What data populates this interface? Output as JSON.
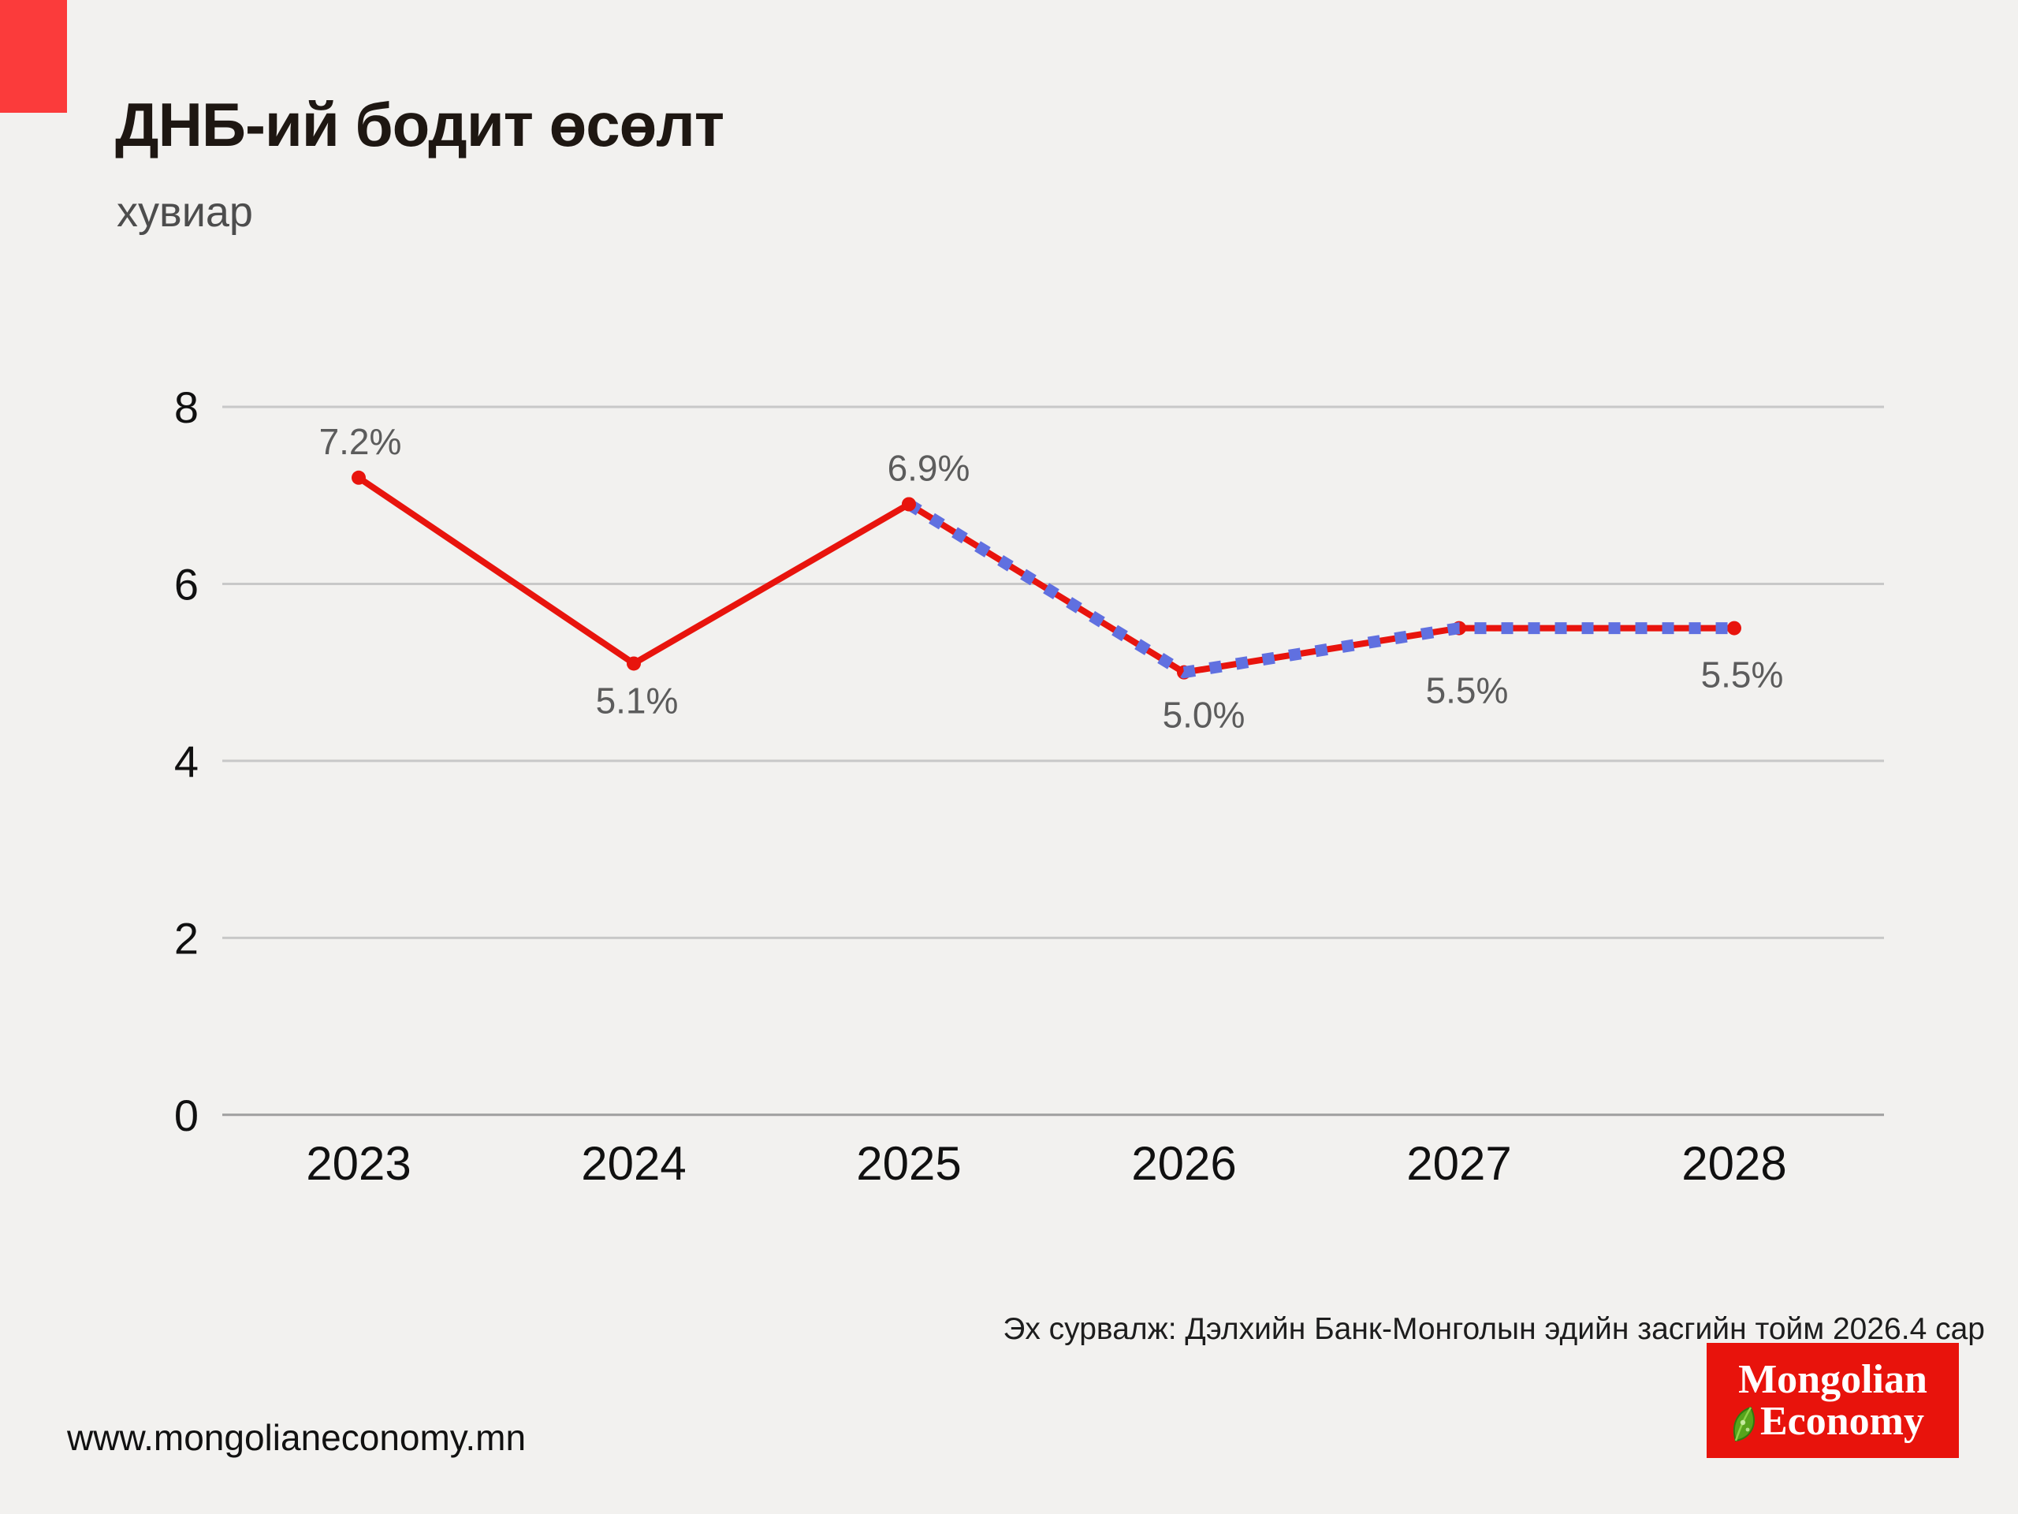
{
  "page": {
    "background": "#f2f1ef",
    "accent_color": "#fb3b3b"
  },
  "header": {
    "title": "ДНБ-ий бодит өсөлт",
    "subtitle": "хувиар"
  },
  "chart_data": {
    "type": "line",
    "title": "ДНБ-ий бодит өсөлт",
    "unit_label": "хувиар",
    "categories": [
      "2023",
      "2024",
      "2025",
      "2026",
      "2027",
      "2028"
    ],
    "values": [
      7.2,
      5.1,
      6.9,
      5.0,
      5.5,
      5.5
    ],
    "point_labels": [
      "7.2%",
      "5.1%",
      "6.9%",
      "5.0%",
      "5.5%",
      "5.5%"
    ],
    "series": [
      {
        "name": "actual",
        "line_style": "solid",
        "color": "#e8140d",
        "x": [
          "2023",
          "2024",
          "2025"
        ],
        "values": [
          7.2,
          5.1,
          6.9
        ]
      },
      {
        "name": "forecast",
        "line_style": "dashed",
        "color": "#6070e0",
        "underlay_color": "#e8140d",
        "x": [
          "2025",
          "2026",
          "2027",
          "2028"
        ],
        "values": [
          6.9,
          5.0,
          5.5,
          5.5
        ]
      }
    ],
    "yticks": [
      0,
      2,
      4,
      6,
      8
    ],
    "ylim": [
      0,
      8
    ],
    "grid": true,
    "legend_position": "none",
    "colors": {
      "marker": "#e8140d",
      "gridline": "#c8c8c8",
      "zero_line": "#9f9f9f",
      "tick_text": "#101010",
      "point_label_text": "#5c5c5c"
    }
  },
  "footer": {
    "source": "Эх сурвалж: Дэлхийн Банк-Монголын эдийн засгийн тойм 2026.4 сар",
    "website": "www.mongolianeconomy.mn",
    "logo": {
      "line1": "Mongolian",
      "line2": "Economy",
      "background": "#e8130c"
    }
  }
}
